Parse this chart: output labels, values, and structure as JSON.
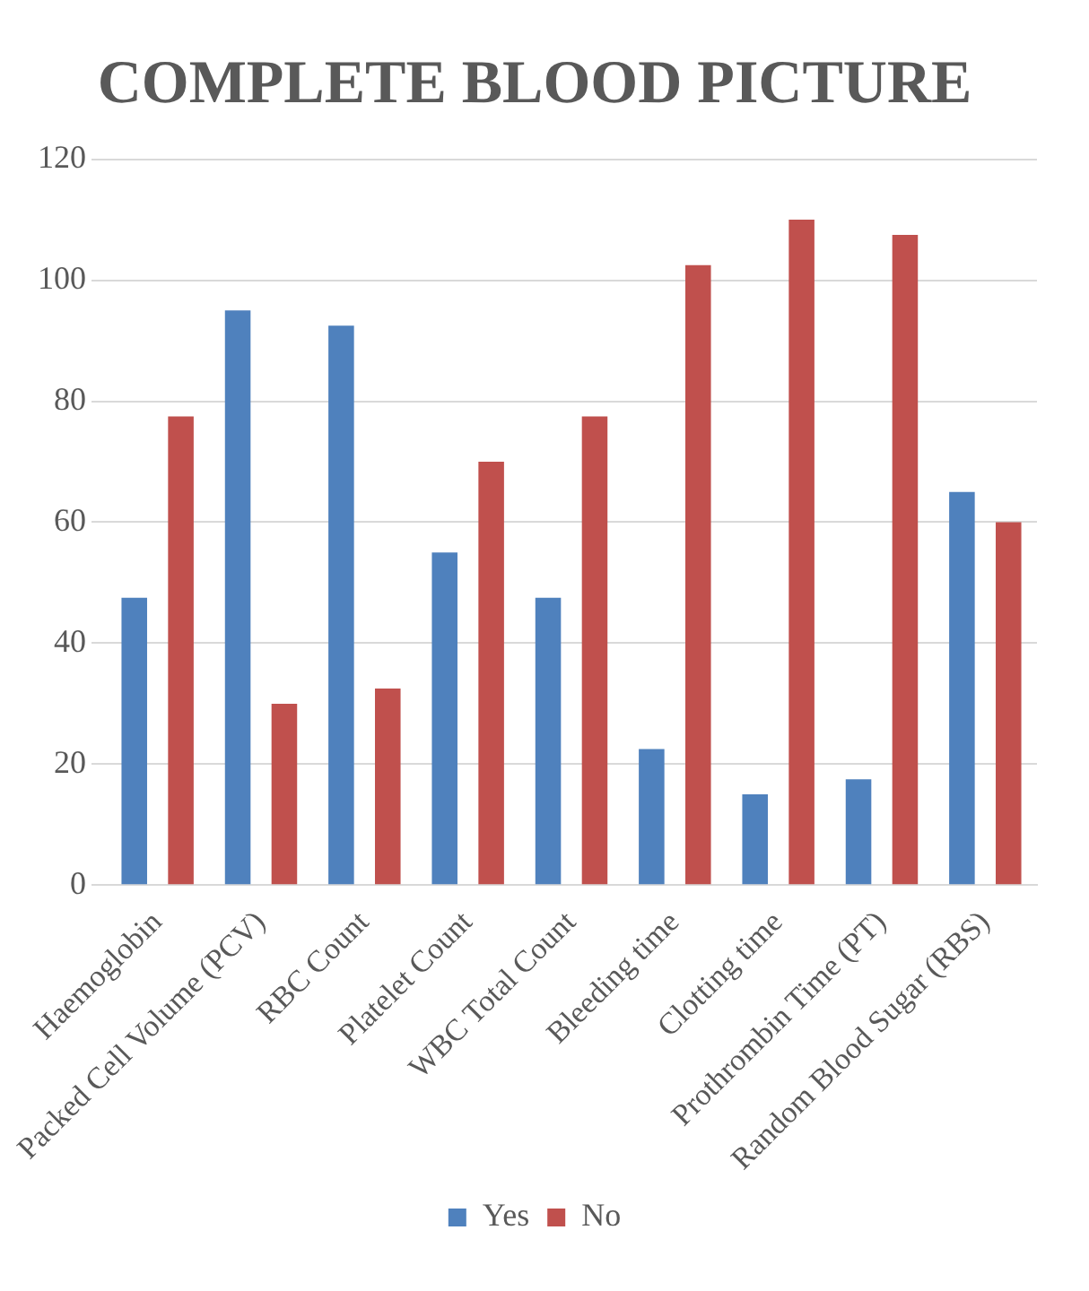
{
  "chart_data": {
    "type": "bar",
    "title": "COMPLETE BLOOD PICTURE",
    "categories": [
      "Haemoglobin",
      "Packed Cell Volume (PCV)",
      "RBC Count",
      "Platelet Count",
      "WBC Total Count",
      "Bleeding time",
      "Clotting time",
      "Prothrombin Time (PT)",
      "Random Blood Sugar (RBS)"
    ],
    "series": [
      {
        "name": "Yes",
        "color": "#4f81bd",
        "values": [
          47.5,
          95,
          92.5,
          55,
          47.5,
          22.5,
          15,
          17.5,
          65
        ]
      },
      {
        "name": "No",
        "color": "#c0504d",
        "values": [
          77.5,
          30,
          32.5,
          70,
          77.5,
          102.5,
          110,
          107.5,
          60
        ]
      }
    ],
    "ylim": [
      0,
      120
    ],
    "yticks": [
      0,
      20,
      40,
      60,
      80,
      100,
      120
    ],
    "grid": "y",
    "legend": "bottom"
  }
}
